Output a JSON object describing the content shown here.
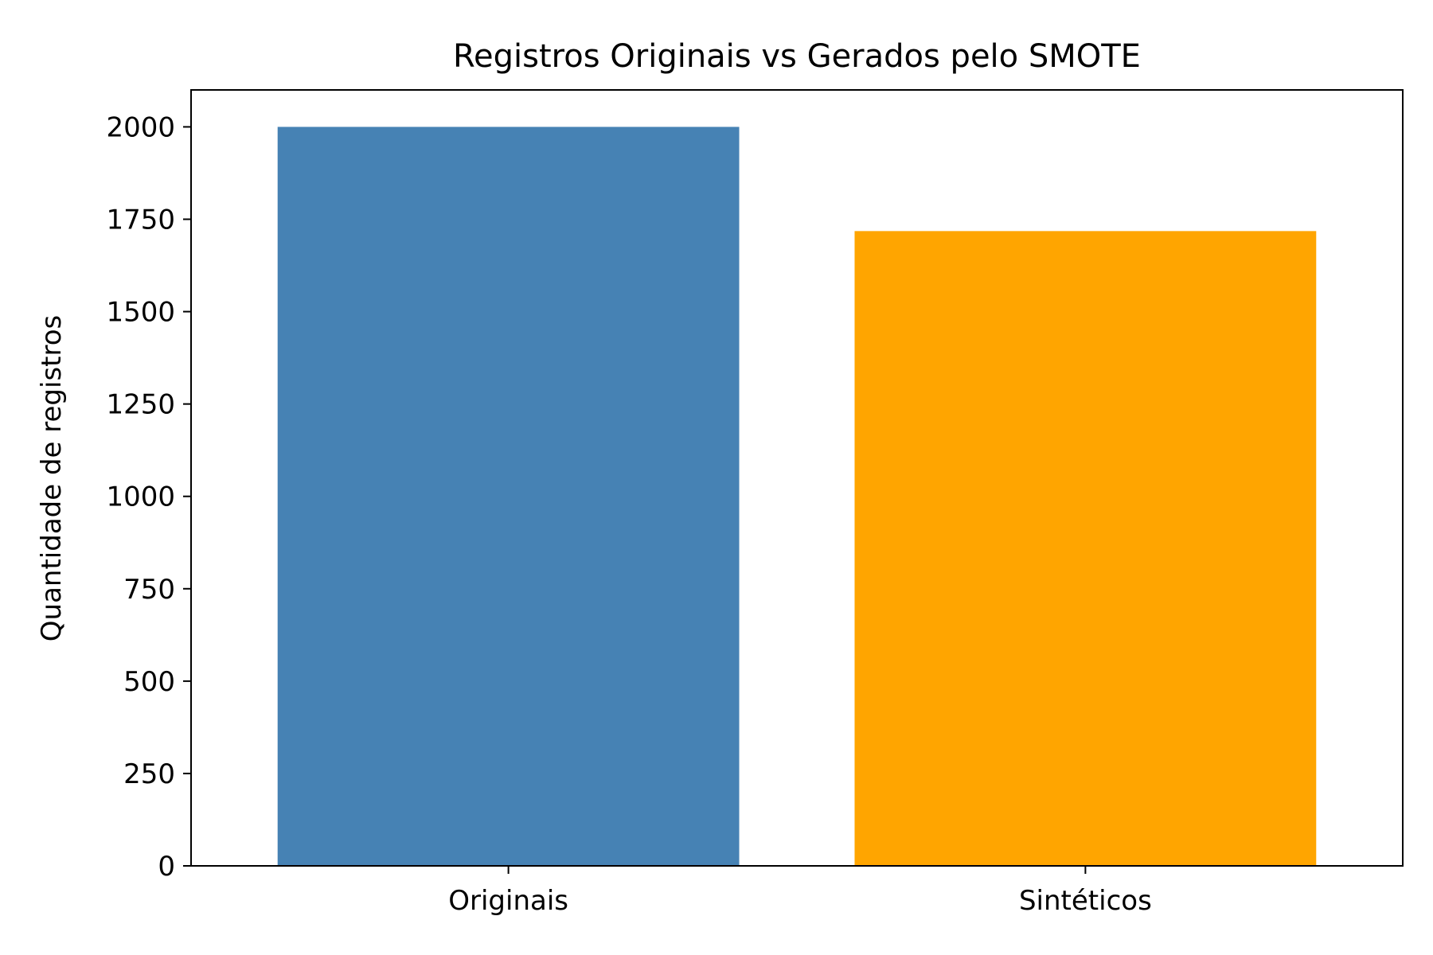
{
  "chart_data": {
    "type": "bar",
    "title": "Registros Originais vs Gerados pelo SMOTE",
    "xlabel": "",
    "ylabel": "Quantidade de registros",
    "categories": [
      "Originais",
      "Sintéticos"
    ],
    "values": [
      2000,
      1718
    ],
    "colors": [
      "#4682b4",
      "#ffa500"
    ],
    "ylim": [
      0,
      2100
    ],
    "yticks": [
      0,
      250,
      500,
      750,
      1000,
      1250,
      1500,
      1750,
      2000
    ],
    "grid": false,
    "legend": "none"
  }
}
